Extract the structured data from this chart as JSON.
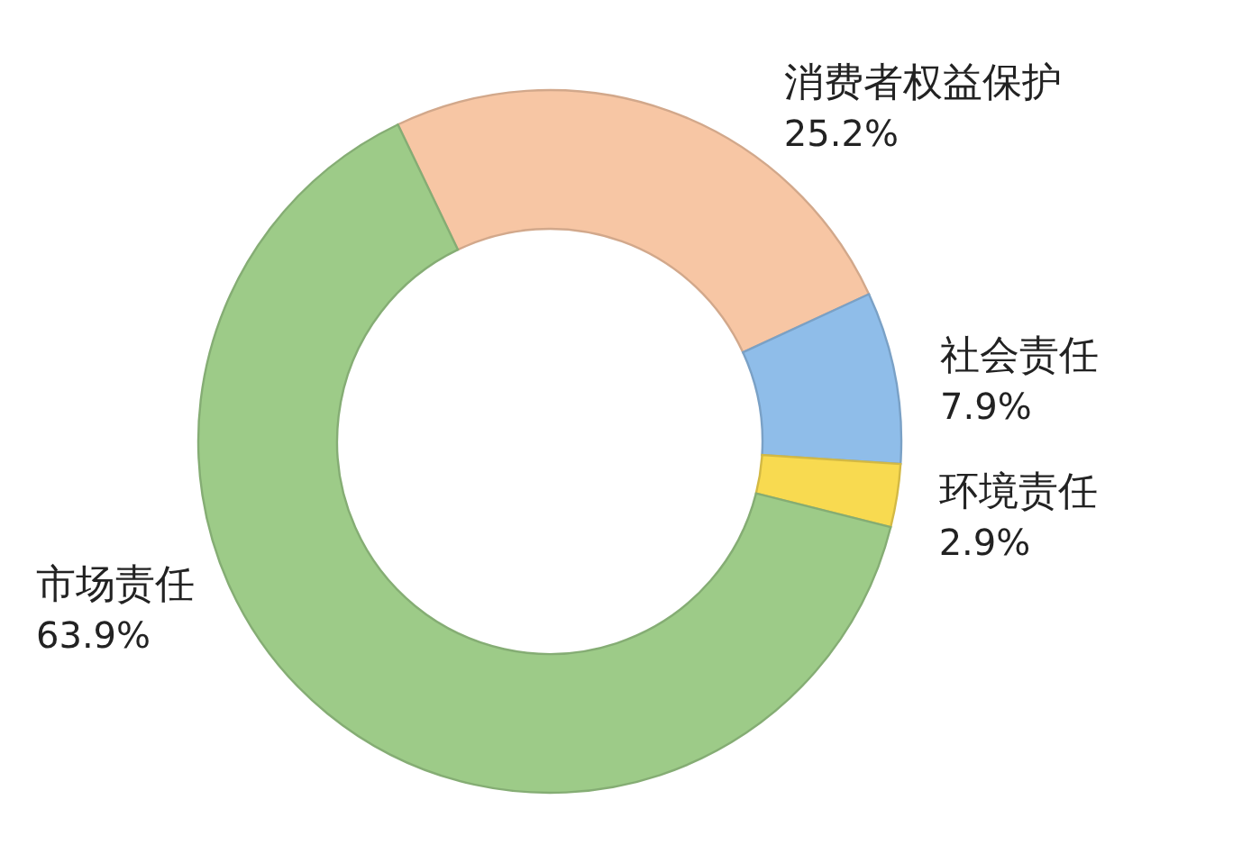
{
  "chart_data": {
    "type": "donut",
    "categories": [
      "消费者权益保护",
      "社会责任",
      "环境责任",
      "市场责任"
    ],
    "values": [
      25.2,
      7.9,
      2.9,
      63.9
    ],
    "colors": [
      "#f7c6a4",
      "#8fbde9",
      "#f8da50",
      "#9dcb88"
    ],
    "value_labels": [
      "25.2%",
      "7.9%",
      "2.9%",
      "63.9%"
    ]
  }
}
